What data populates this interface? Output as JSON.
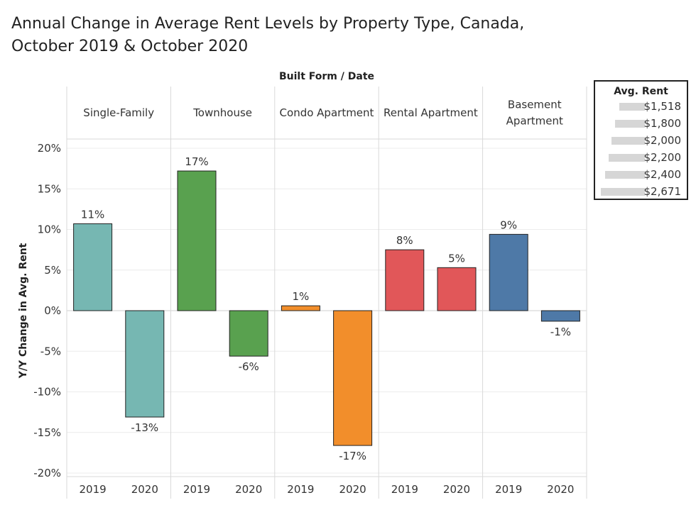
{
  "title_line1": "Annual Change in Average Rent Levels by Property Type, Canada,",
  "title_line2": "October 2019 & October 2020",
  "chart_data": {
    "type": "bar",
    "header_label": "Built Form  /  Date",
    "ylabel": "Y/Y Change in Avg. Rent",
    "ylim": [
      -21,
      21
    ],
    "yticks": [
      20,
      15,
      10,
      5,
      0,
      -5,
      -10,
      -15,
      -20
    ],
    "ytick_labels": [
      "20%",
      "15%",
      "10%",
      "5%",
      "0%",
      "-5%",
      "-10%",
      "-15%",
      "-20%"
    ],
    "categories": [
      "2019",
      "2020"
    ],
    "grid": true,
    "groups": [
      {
        "name": "Single-Family",
        "name_lines": [
          "Single-Family"
        ],
        "color": "#76B7B2",
        "values": [
          10.7,
          -13.1
        ],
        "labels": [
          "11%",
          "-13%"
        ]
      },
      {
        "name": "Townhouse",
        "name_lines": [
          "Townhouse"
        ],
        "color": "#59A14F",
        "values": [
          17.2,
          -5.6
        ],
        "labels": [
          "17%",
          "-6%"
        ]
      },
      {
        "name": "Condo Apartment",
        "name_lines": [
          "Condo Apartment"
        ],
        "color": "#F28E2B",
        "values": [
          0.6,
          -16.6
        ],
        "labels": [
          "1%",
          "-17%"
        ]
      },
      {
        "name": "Rental Apartment",
        "name_lines": [
          "Rental Apartment"
        ],
        "color": "#E15759",
        "values": [
          7.5,
          5.3
        ],
        "labels": [
          "8%",
          "5%"
        ]
      },
      {
        "name": "Basement Apartment",
        "name_lines": [
          "Basement",
          "Apartment"
        ],
        "color": "#4E79A7",
        "values": [
          9.4,
          -1.3
        ],
        "labels": [
          "9%",
          "-1%"
        ]
      }
    ],
    "size_legend": {
      "title": "Avg. Rent",
      "items": [
        {
          "label": "$1,518",
          "value": 1518
        },
        {
          "label": "$1,800",
          "value": 1800
        },
        {
          "label": "$2,000",
          "value": 2000
        },
        {
          "label": "$2,200",
          "value": 2200
        },
        {
          "label": "$2,400",
          "value": 2400
        },
        {
          "label": "$2,671",
          "value": 2671
        }
      ],
      "placement": "right"
    }
  }
}
